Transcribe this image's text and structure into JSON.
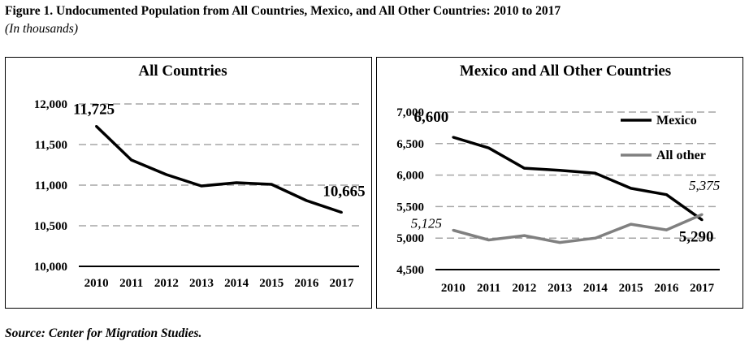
{
  "figure": {
    "title": "Figure 1. Undocumented Population from All Countries, Mexico, and All Other Countries: 2010 to 2017",
    "subtitle": "(In thousands)",
    "source": "Source: Center for Migration Studies."
  },
  "chart_data": [
    {
      "type": "line",
      "title": "All Countries",
      "xlabel": "",
      "ylabel": "",
      "x": [
        "2010",
        "2011",
        "2012",
        "2013",
        "2014",
        "2015",
        "2016",
        "2017"
      ],
      "ylim": [
        10000,
        12000
      ],
      "yticks": [
        10000,
        10500,
        11000,
        11500,
        12000
      ],
      "ytick_labels": [
        "10,000",
        "10,500",
        "11,000",
        "11,500",
        "12,000"
      ],
      "grid": true,
      "series": [
        {
          "values": [
            11725,
            11310,
            11130,
            10990,
            11030,
            11010,
            10810,
            10665
          ],
          "color": "#000000"
        }
      ],
      "annotations": [
        {
          "text": "11,725",
          "series": 0,
          "index": 0
        },
        {
          "text": "10,665",
          "series": 0,
          "index": 7
        }
      ]
    },
    {
      "type": "line",
      "title": "Mexico and All Other Countries",
      "xlabel": "",
      "ylabel": "",
      "x": [
        "2010",
        "2011",
        "2012",
        "2013",
        "2014",
        "2015",
        "2016",
        "2017"
      ],
      "ylim": [
        4500,
        7000
      ],
      "yticks": [
        4500,
        5000,
        5500,
        6000,
        6500,
        7000
      ],
      "ytick_labels": [
        "4,500",
        "5,000",
        "5,500",
        "6,000",
        "6,500",
        "7,000"
      ],
      "grid": true,
      "legend": "top-right",
      "series": [
        {
          "name": "Mexico",
          "values": [
            6600,
            6430,
            6110,
            6075,
            6030,
            5790,
            5690,
            5290
          ],
          "color": "#000000"
        },
        {
          "name": "All other",
          "values": [
            5125,
            4970,
            5040,
            4930,
            5000,
            5220,
            5130,
            5375
          ],
          "color": "#808080"
        }
      ],
      "annotations": [
        {
          "text": "6,600",
          "series": 0,
          "index": 0
        },
        {
          "text": "5,290",
          "series": 0,
          "index": 7
        },
        {
          "text": "5,125",
          "series": 1,
          "index": 0
        },
        {
          "text": "5,375",
          "series": 1,
          "index": 7
        }
      ]
    }
  ]
}
